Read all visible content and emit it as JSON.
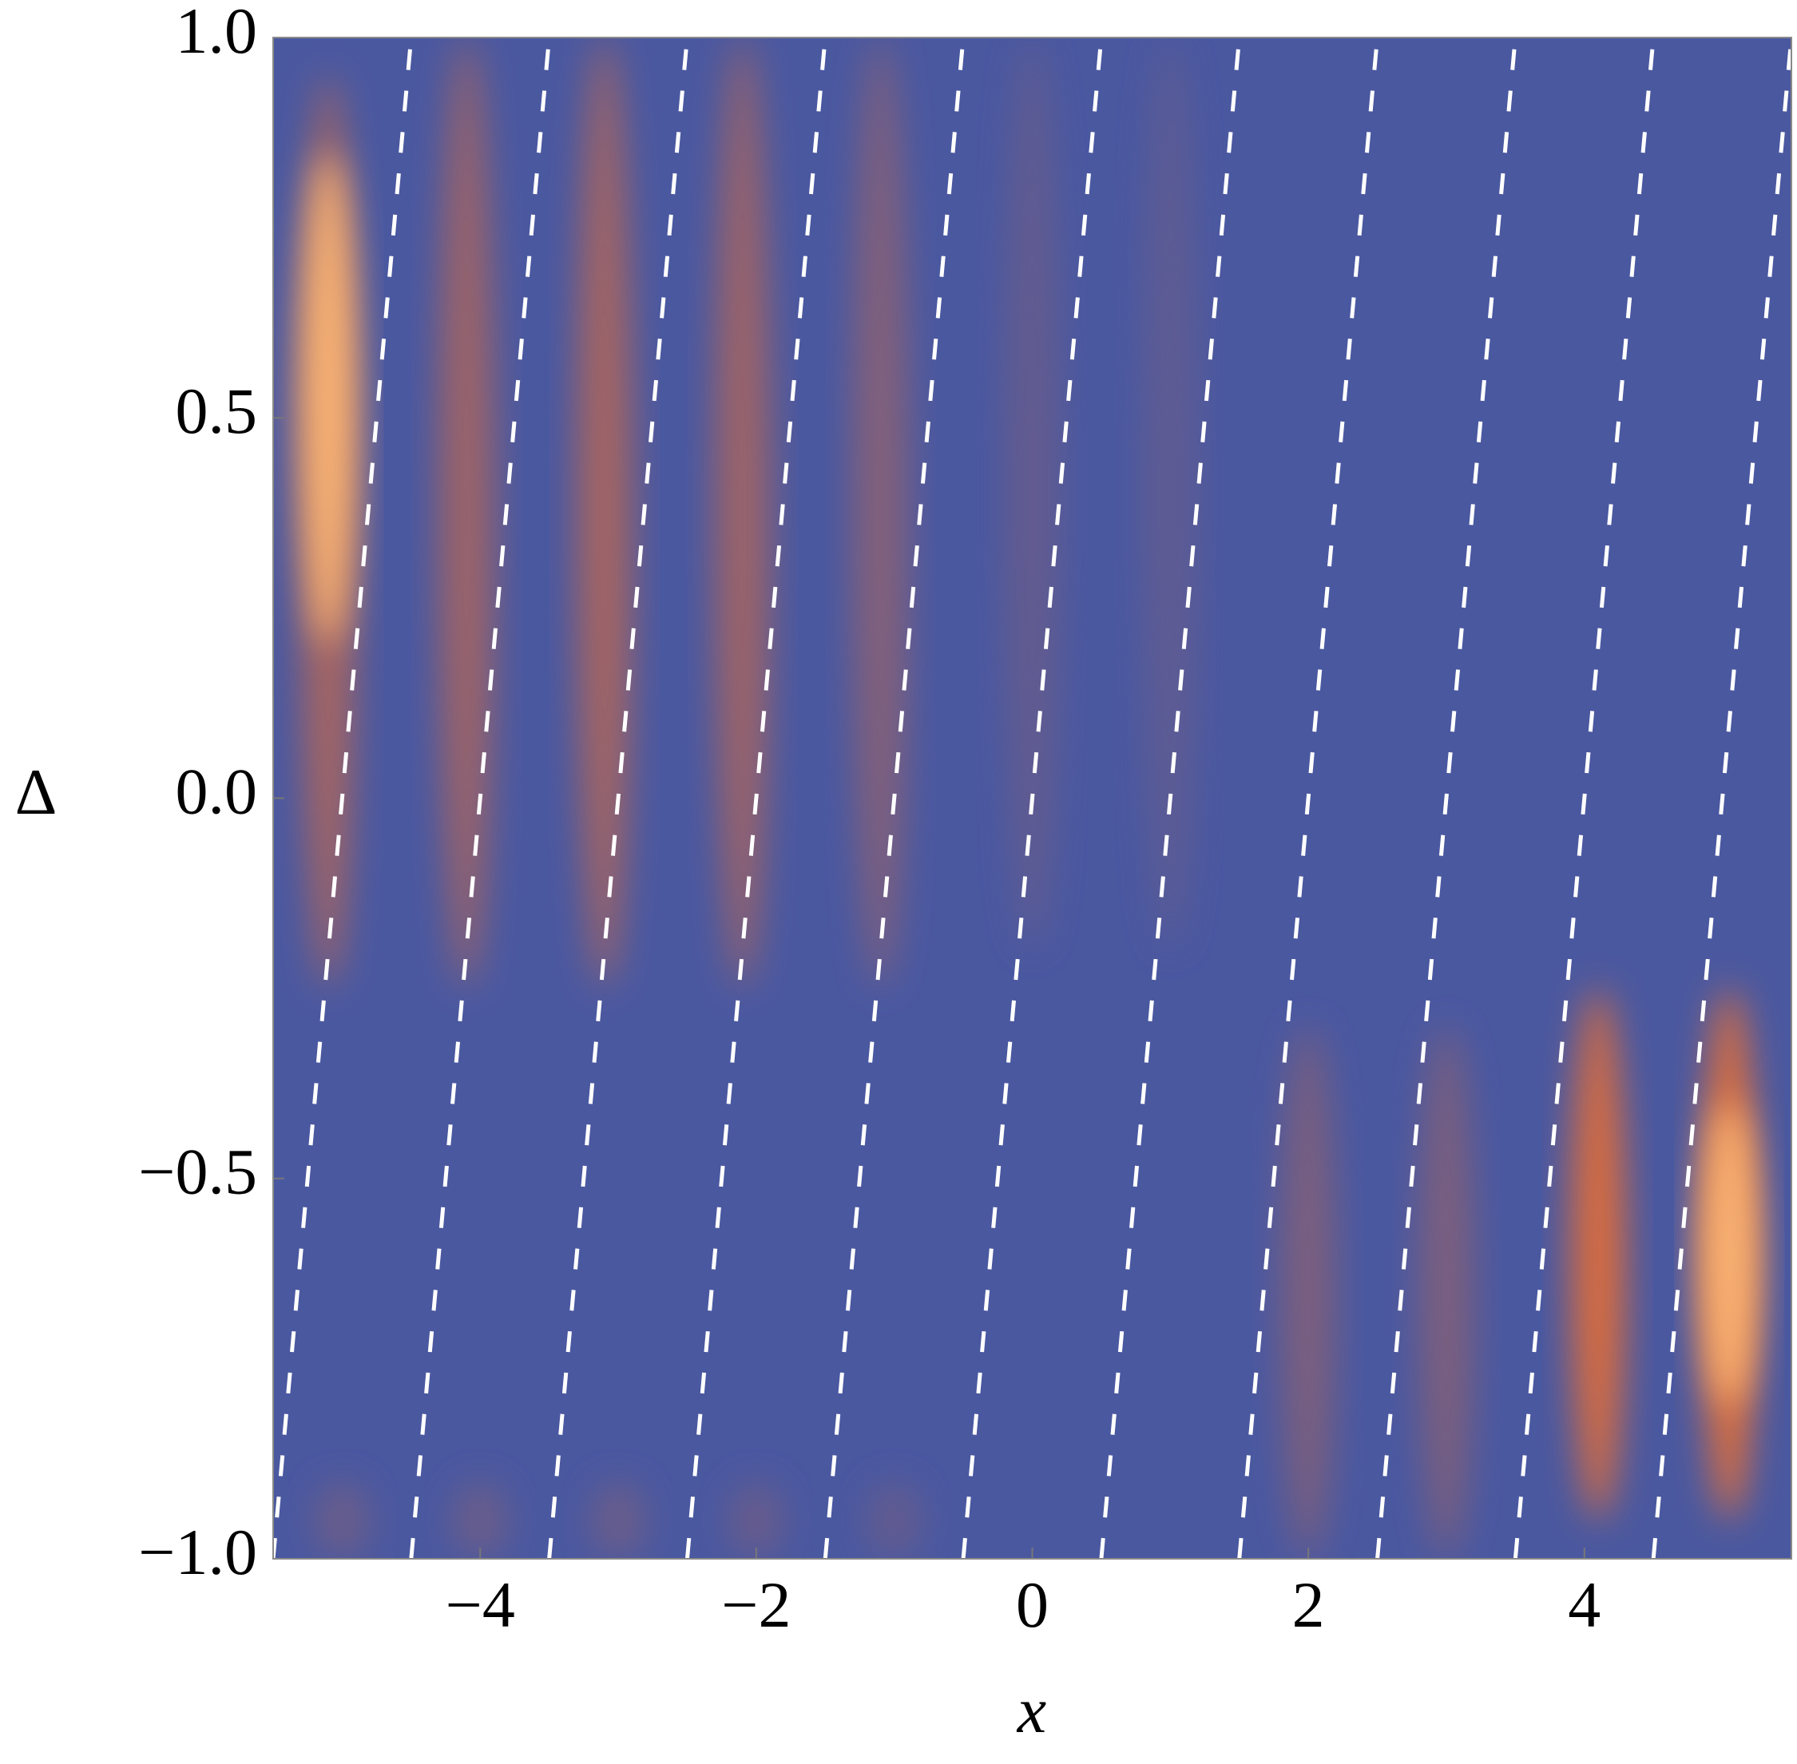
{
  "chart_data": {
    "type": "density",
    "x_label": "x",
    "y_label": "Δ",
    "xlim": [
      -5.5,
      5.5
    ],
    "ylim": [
      -1,
      1
    ],
    "xticks": [
      {
        "value": -4,
        "label": "−4"
      },
      {
        "value": -2,
        "label": "−2"
      },
      0,
      2,
      4
    ],
    "yticks": [
      {
        "value": -1,
        "label": "−1.0"
      },
      {
        "value": -0.5,
        "label": "−0.5"
      },
      {
        "value": 0,
        "label": "0.0"
      },
      {
        "value": 0.5,
        "label": "0.5"
      },
      {
        "value": 1,
        "label": "1.0"
      }
    ],
    "background_color": "#4a58a0",
    "high_color": "#f07030",
    "line_color": "#ffffff",
    "blobs": [
      {
        "x": -5.1,
        "y": [
          -0.25,
          0.95
        ],
        "level": 0.55
      },
      {
        "x": -5.1,
        "y": [
          0.2,
          0.85
        ],
        "level": 1.0
      },
      {
        "x": -4.1,
        "y": [
          -0.25,
          1
        ],
        "level": 0.5
      },
      {
        "x": -3.1,
        "y": [
          -0.25,
          1
        ],
        "level": 0.55
      },
      {
        "x": -2.1,
        "y": [
          -0.25,
          1
        ],
        "level": 0.5
      },
      {
        "x": -1.1,
        "y": [
          -0.25,
          1
        ],
        "level": 0.35
      },
      {
        "x": 0,
        "y": [
          -0.2,
          1
        ],
        "level": 0.15
      },
      {
        "x": 1,
        "y": [
          -0.2,
          1
        ],
        "level": 0.12
      },
      {
        "x": 2,
        "y": [
          -1,
          -0.3
        ],
        "level": 0.3
      },
      {
        "x": 3,
        "y": [
          -1,
          -0.3
        ],
        "level": 0.3
      },
      {
        "x": 4.1,
        "y": [
          -0.95,
          -0.25
        ],
        "level": 0.85
      },
      {
        "x": 5.05,
        "y": [
          -0.95,
          -0.25
        ],
        "level": 0.9
      },
      {
        "x": 5.05,
        "y": [
          -0.8,
          -0.4
        ],
        "level": 1.0
      },
      {
        "x": -5,
        "y": [
          -1,
          -0.9
        ],
        "level": 0.2
      },
      {
        "x": -4,
        "y": [
          -1,
          -0.9
        ],
        "level": 0.2
      },
      {
        "x": -3,
        "y": [
          -1,
          -0.9
        ],
        "level": 0.2
      },
      {
        "x": -2,
        "y": [
          -1,
          -0.9
        ],
        "level": 0.18
      },
      {
        "x": -1,
        "y": [
          -1,
          -0.9
        ],
        "level": 0.15
      }
    ],
    "lines": [
      {
        "x": [
          -5.5,
          -4.5
        ],
        "y": [
          -1,
          1
        ]
      },
      {
        "x": [
          -4.5,
          -3.5
        ],
        "y": [
          -1,
          1
        ]
      },
      {
        "x": [
          -3.5,
          -2.5
        ],
        "y": [
          -1,
          1
        ]
      },
      {
        "x": [
          -2.5,
          -1.5
        ],
        "y": [
          -1,
          1
        ]
      },
      {
        "x": [
          -1.5,
          -0.5
        ],
        "y": [
          -1,
          1
        ]
      },
      {
        "x": [
          -0.5,
          0.5
        ],
        "y": [
          -1,
          1
        ]
      },
      {
        "x": [
          0.5,
          1.5
        ],
        "y": [
          -1,
          1
        ]
      },
      {
        "x": [
          1.5,
          2.5
        ],
        "y": [
          -1,
          1
        ]
      },
      {
        "x": [
          2.5,
          3.5
        ],
        "y": [
          -1,
          1
        ]
      },
      {
        "x": [
          3.5,
          4.5
        ],
        "y": [
          -1,
          1
        ]
      },
      {
        "x": [
          4.5,
          5.5
        ],
        "y": [
          -1,
          1
        ]
      }
    ]
  }
}
